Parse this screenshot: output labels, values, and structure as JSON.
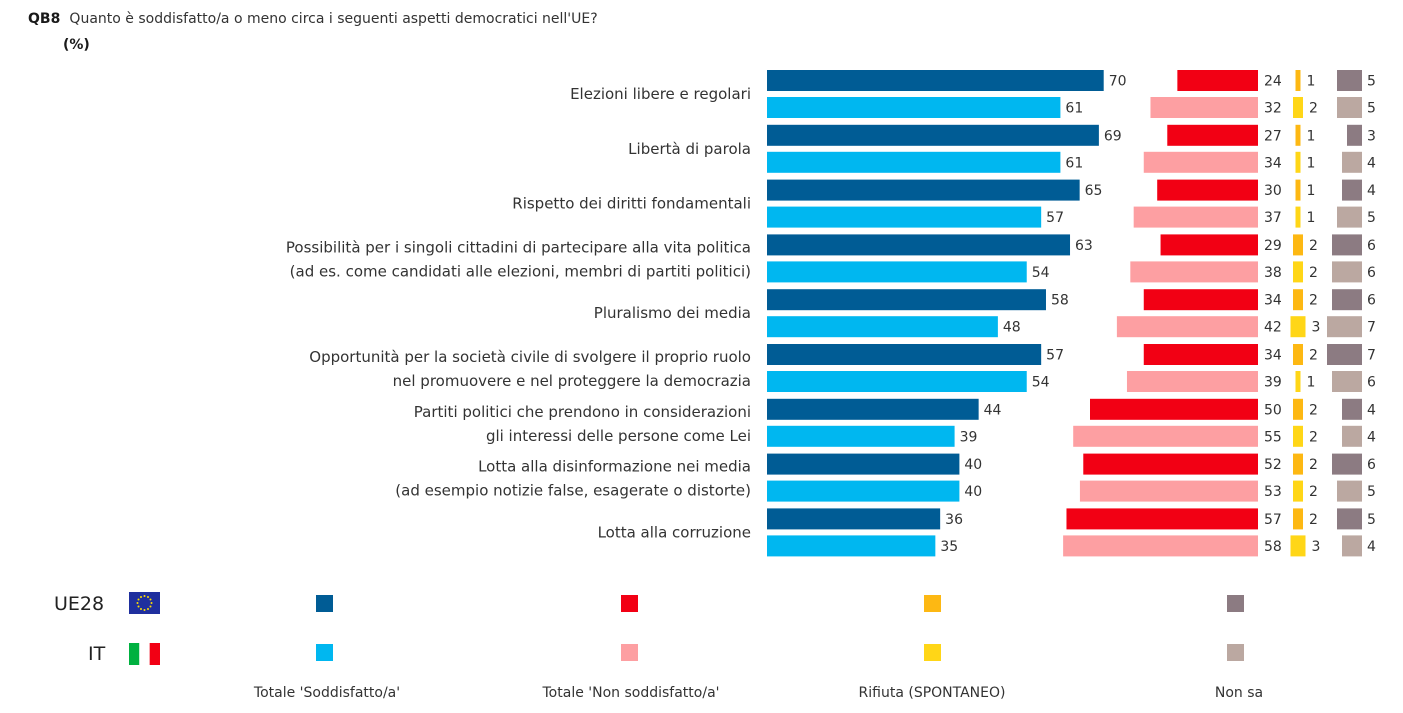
{
  "header": {
    "code": "QB8",
    "question": "Quanto è soddisfatto/a o meno circa i seguenti aspetti democratici nell'UE?",
    "unit": "(%)"
  },
  "legend": {
    "countries": [
      {
        "code": "UE28",
        "flag": "eu-flag-icon"
      },
      {
        "code": "IT",
        "flag": "italy-flag-icon"
      }
    ],
    "categories": [
      "Totale 'Soddisfatto/a'",
      "Totale 'Non soddisfatto/a'",
      "Rifiuta (SPONTANEO)",
      "Non sa"
    ]
  },
  "colors": {
    "UE28": [
      "#005c95",
      "#f20014",
      "#fdb813",
      "#8c7b82"
    ],
    "IT": [
      "#00b7f0",
      "#fd9fa2",
      "#ffd617",
      "#bba8a1"
    ]
  },
  "chart_data": {
    "type": "bar",
    "orientation": "horizontal",
    "items": [
      {
        "label": [
          "Elezioni libere e regolari"
        ],
        "UE28": [
          70,
          24,
          1,
          5
        ],
        "IT": [
          61,
          32,
          2,
          5
        ]
      },
      {
        "label": [
          "Libertà di parola"
        ],
        "UE28": [
          69,
          27,
          1,
          3
        ],
        "IT": [
          61,
          34,
          1,
          4
        ]
      },
      {
        "label": [
          "Rispetto dei diritti fondamentali"
        ],
        "UE28": [
          65,
          30,
          1,
          4
        ],
        "IT": [
          57,
          37,
          1,
          5
        ]
      },
      {
        "label": [
          "Possibilità per i singoli cittadini di partecipare alla vita politica",
          "(ad es. come candidati alle elezioni, membri di partiti politici)"
        ],
        "UE28": [
          63,
          29,
          2,
          6
        ],
        "IT": [
          54,
          38,
          2,
          6
        ]
      },
      {
        "label": [
          "Pluralismo dei media"
        ],
        "UE28": [
          58,
          34,
          2,
          6
        ],
        "IT": [
          48,
          42,
          3,
          7
        ]
      },
      {
        "label": [
          "Opportunità per la società civile di svolgere il proprio ruolo",
          "nel promuovere e nel proteggere la democrazia"
        ],
        "UE28": [
          57,
          34,
          2,
          7
        ],
        "IT": [
          54,
          39,
          1,
          6
        ]
      },
      {
        "label": [
          "Partiti politici che prendono in considerazioni",
          "gli interessi delle persone come Lei"
        ],
        "UE28": [
          44,
          50,
          2,
          4
        ],
        "IT": [
          39,
          55,
          2,
          4
        ]
      },
      {
        "label": [
          "Lotta alla disinformazione nei media",
          "(ad esempio notizie false, esagerate o distorte)"
        ],
        "UE28": [
          40,
          52,
          2,
          6
        ],
        "IT": [
          40,
          53,
          2,
          5
        ]
      },
      {
        "label": [
          "Lotta alla corruzione"
        ],
        "UE28": [
          36,
          57,
          2,
          5
        ],
        "IT": [
          35,
          58,
          3,
          4
        ]
      }
    ]
  }
}
